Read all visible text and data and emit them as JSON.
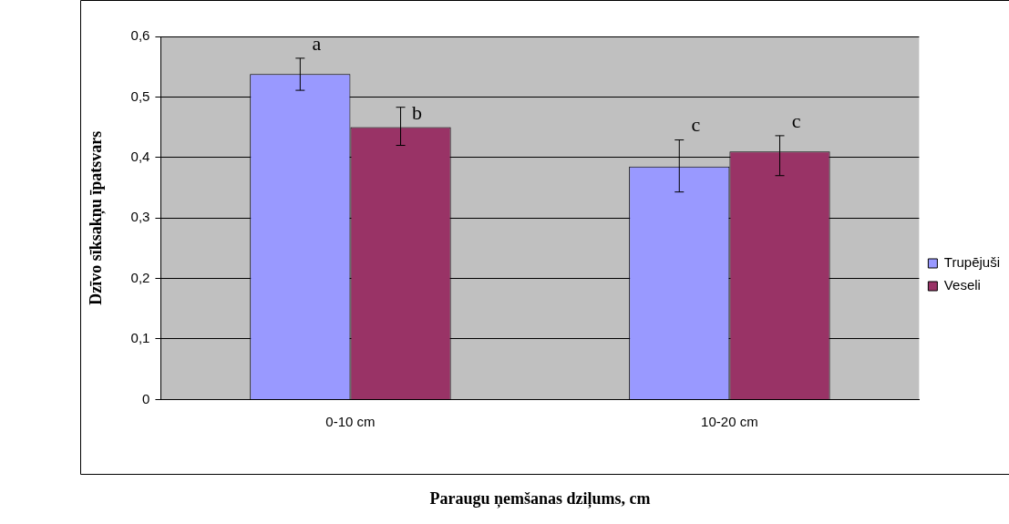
{
  "chart_data": {
    "type": "bar",
    "xlabel": "Paraugu ņemšanas dziļums, cm",
    "ylabel": "Dzīvo sīksakņu īpatsvars",
    "categories": [
      "0-10 cm",
      "10-20 cm"
    ],
    "series": [
      {
        "name": "Trupējuši",
        "color": "#9999ff",
        "values": [
          0.538,
          0.385
        ],
        "errors": [
          [
            0.511,
            0.564
          ],
          [
            0.343,
            0.429
          ]
        ]
      },
      {
        "name": "Veseli",
        "color": "#993366",
        "values": [
          0.45,
          0.41
        ],
        "errors": [
          [
            0.42,
            0.483
          ],
          [
            0.37,
            0.436
          ]
        ]
      }
    ],
    "ylim": [
      0,
      0.6
    ],
    "yticks": [
      {
        "value": 0,
        "label": "0"
      },
      {
        "value": 0.1,
        "label": "0,1"
      },
      {
        "value": 0.2,
        "label": "0,2"
      },
      {
        "value": 0.3,
        "label": "0,3"
      },
      {
        "value": 0.4,
        "label": "0,4"
      },
      {
        "value": 0.5,
        "label": "0,5"
      },
      {
        "value": 0.6,
        "label": "0,6"
      }
    ],
    "grid": "y",
    "legend": "right",
    "annotations": [
      "a",
      "b",
      "c",
      "c"
    ]
  }
}
